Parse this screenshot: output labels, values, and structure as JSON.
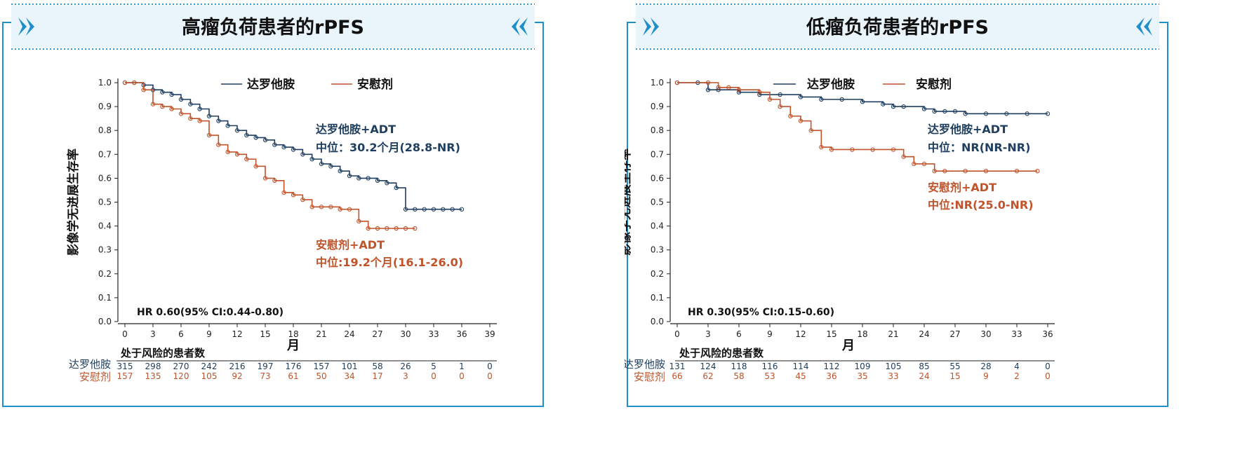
{
  "colors": {
    "darolutamide": "#1f3f60",
    "placebo": "#c0532a",
    "frame": "#1e8fc9",
    "dotted": "#2b9bd3"
  },
  "chart_data": [
    {
      "type": "line",
      "title": "高瘤负荷患者的rPFS",
      "xlabel": "月",
      "ylabel": "影像学无进展生存率",
      "xlim": [
        0,
        39
      ],
      "ylim": [
        0,
        1.0
      ],
      "xticks": [
        0,
        3,
        6,
        9,
        12,
        15,
        18,
        21,
        24,
        27,
        30,
        33,
        36,
        39
      ],
      "yticks": [
        0.0,
        0.1,
        0.2,
        0.3,
        0.4,
        0.5,
        0.6,
        0.7,
        0.8,
        0.9,
        1.0
      ],
      "legend_position": "top",
      "hr_text": "HR 0.60(95% CI:0.44-0.80)",
      "series": [
        {
          "name": "达罗他胺",
          "color_key": "darolutamide",
          "median_label": "达罗他胺+ADT",
          "median_value": "中位：30.2个月(28.8-NR)",
          "x": [
            0,
            1,
            2,
            3,
            4,
            5,
            6,
            7,
            8,
            9,
            10,
            11,
            12,
            13,
            14,
            15,
            16,
            17,
            18,
            19,
            20,
            21,
            22,
            23,
            24,
            25,
            26,
            27,
            28,
            29,
            30,
            31,
            32,
            33,
            34,
            35,
            36
          ],
          "y": [
            1.0,
            1.0,
            0.99,
            0.97,
            0.96,
            0.95,
            0.93,
            0.91,
            0.89,
            0.86,
            0.84,
            0.82,
            0.8,
            0.78,
            0.77,
            0.76,
            0.74,
            0.73,
            0.72,
            0.7,
            0.68,
            0.66,
            0.65,
            0.63,
            0.61,
            0.6,
            0.6,
            0.59,
            0.58,
            0.56,
            0.47,
            0.47,
            0.47,
            0.47,
            0.47,
            0.47,
            0.47
          ]
        },
        {
          "name": "安慰剂",
          "color_key": "placebo",
          "median_label": "安慰剂+ADT",
          "median_value": "中位:19.2个月(16.1-26.0)",
          "x": [
            0,
            1,
            2,
            3,
            4,
            5,
            6,
            7,
            8,
            9,
            10,
            11,
            12,
            13,
            14,
            15,
            16,
            17,
            18,
            19,
            20,
            21,
            22,
            23,
            24,
            25,
            26,
            27,
            28,
            29,
            30,
            31
          ],
          "y": [
            1.0,
            1.0,
            0.97,
            0.91,
            0.9,
            0.89,
            0.87,
            0.85,
            0.84,
            0.78,
            0.74,
            0.71,
            0.7,
            0.68,
            0.65,
            0.6,
            0.59,
            0.54,
            0.53,
            0.51,
            0.48,
            0.48,
            0.48,
            0.47,
            0.47,
            0.42,
            0.39,
            0.39,
            0.39,
            0.39,
            0.39,
            0.39
          ]
        }
      ],
      "risk_table": {
        "header": "处于风险的患者数",
        "rows": [
          {
            "name": "达罗他胺",
            "values": [
              "315",
              "298",
              "270",
              "242",
              "216",
              "197",
              "176",
              "157",
              "101",
              "58",
              "26",
              "5",
              "1",
              "0"
            ]
          },
          {
            "name": "安慰剂",
            "values": [
              "157",
              "135",
              "120",
              "105",
              "92",
              "73",
              "61",
              "50",
              "34",
              "17",
              "3",
              "0",
              "0",
              "0"
            ]
          }
        ]
      }
    },
    {
      "type": "line",
      "title": "低瘤负荷患者的rPFS",
      "xlabel": "月",
      "ylabel": "影像学无进展生存率",
      "xlim": [
        0,
        36
      ],
      "ylim": [
        0,
        1.0
      ],
      "xticks": [
        0,
        3,
        6,
        9,
        12,
        15,
        18,
        21,
        24,
        27,
        30,
        33,
        36
      ],
      "yticks": [
        0.0,
        0.1,
        0.2,
        0.3,
        0.4,
        0.5,
        0.6,
        0.7,
        0.8,
        0.9,
        1.0
      ],
      "legend_position": "top",
      "hr_text": "HR 0.30(95% CI:0.15-0.60)",
      "series": [
        {
          "name": "达罗他胺",
          "color_key": "darolutamide",
          "median_label": "达罗他胺+ADT",
          "median_value": "中位：NR(NR-NR)",
          "x": [
            0,
            2,
            3,
            4,
            6,
            8,
            10,
            12,
            14,
            16,
            18,
            20,
            21,
            22,
            24,
            25,
            26,
            27,
            28,
            30,
            32,
            34,
            36
          ],
          "y": [
            1.0,
            1.0,
            0.97,
            0.97,
            0.96,
            0.95,
            0.95,
            0.94,
            0.93,
            0.93,
            0.92,
            0.91,
            0.9,
            0.9,
            0.89,
            0.88,
            0.88,
            0.88,
            0.87,
            0.87,
            0.87,
            0.87,
            0.87
          ]
        },
        {
          "name": "安慰剂",
          "color_key": "placebo",
          "median_label": "安慰剂+ADT",
          "median_value": "中位:NR(25.0-NR)",
          "x": [
            0,
            3,
            4,
            5,
            6,
            8,
            9,
            10,
            11,
            12,
            13,
            14,
            15,
            17,
            19,
            21,
            22,
            23,
            24,
            25,
            26,
            28,
            30,
            33,
            35
          ],
          "y": [
            1.0,
            1.0,
            0.98,
            0.98,
            0.97,
            0.96,
            0.93,
            0.9,
            0.86,
            0.84,
            0.8,
            0.73,
            0.72,
            0.72,
            0.72,
            0.72,
            0.69,
            0.66,
            0.66,
            0.63,
            0.63,
            0.63,
            0.63,
            0.63,
            0.63
          ]
        }
      ],
      "risk_table": {
        "header": "处于风险的患者数",
        "rows": [
          {
            "name": "达罗他胺",
            "values": [
              "131",
              "124",
              "118",
              "116",
              "114",
              "112",
              "109",
              "105",
              "85",
              "55",
              "28",
              "4",
              "0"
            ]
          },
          {
            "name": "安慰剂",
            "values": [
              "66",
              "62",
              "58",
              "53",
              "45",
              "36",
              "35",
              "33",
              "24",
              "15",
              "9",
              "2",
              "0"
            ]
          }
        ]
      }
    }
  ]
}
